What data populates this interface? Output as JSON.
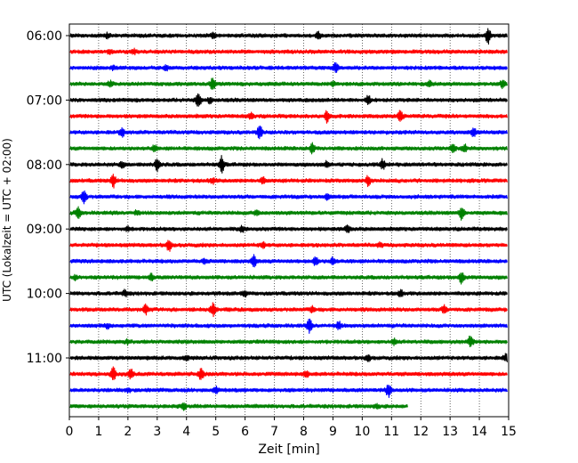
{
  "chart_data": {
    "type": "line",
    "title": "",
    "xlabel": "Zeit  [min]",
    "ylabel": "UTC (Lokalzeit = UTC + 02:00)",
    "xlim": [
      0,
      15
    ],
    "x_ticks": [
      "0",
      "1",
      "2",
      "3",
      "4",
      "5",
      "6",
      "7",
      "8",
      "9",
      "10",
      "11",
      "12",
      "13",
      "14",
      "15"
    ],
    "y_tick_labels": [
      "06:00",
      "07:00",
      "08:00",
      "09:00",
      "10:00",
      "11:00"
    ],
    "grid": "vertical dotted",
    "trace_colors": [
      "#000000",
      "#ff0000",
      "#0000ff",
      "#008000"
    ],
    "traces": [
      {
        "start": "06:00",
        "color": "#000000",
        "end_min": 15,
        "events": [
          [
            14.3,
            9
          ],
          [
            8.5,
            4
          ],
          [
            4.9,
            3
          ],
          [
            1.3,
            2
          ]
        ]
      },
      {
        "start": "06:15",
        "color": "#ff0000",
        "end_min": 15,
        "events": [
          [
            1.4,
            2
          ],
          [
            2.2,
            2
          ]
        ]
      },
      {
        "start": "06:30",
        "color": "#0000ff",
        "end_min": 15,
        "events": [
          [
            9.1,
            5
          ],
          [
            1.5,
            2
          ],
          [
            3.3,
            2
          ]
        ]
      },
      {
        "start": "06:45",
        "color": "#008000",
        "end_min": 15,
        "events": [
          [
            4.9,
            7
          ],
          [
            14.8,
            4
          ],
          [
            1.4,
            3
          ],
          [
            12.3,
            3
          ],
          [
            9.0,
            2
          ]
        ]
      },
      {
        "start": "07:00",
        "color": "#000000",
        "end_min": 15,
        "events": [
          [
            4.4,
            9
          ],
          [
            10.2,
            5
          ],
          [
            4.8,
            3
          ]
        ]
      },
      {
        "start": "07:15",
        "color": "#ff0000",
        "end_min": 15,
        "events": [
          [
            8.8,
            6
          ],
          [
            11.3,
            7
          ],
          [
            6.2,
            3
          ]
        ]
      },
      {
        "start": "07:30",
        "color": "#0000ff",
        "end_min": 15,
        "events": [
          [
            6.5,
            7
          ],
          [
            13.8,
            5
          ],
          [
            1.8,
            4
          ]
        ]
      },
      {
        "start": "07:45",
        "color": "#008000",
        "end_min": 15,
        "events": [
          [
            8.3,
            6
          ],
          [
            13.1,
            5
          ],
          [
            13.5,
            4
          ],
          [
            2.9,
            3
          ]
        ]
      },
      {
        "start": "08:00",
        "color": "#000000",
        "end_min": 15,
        "events": [
          [
            5.2,
            9
          ],
          [
            3.0,
            7
          ],
          [
            10.7,
            5
          ],
          [
            1.8,
            3
          ],
          [
            8.8,
            3
          ]
        ]
      },
      {
        "start": "08:15",
        "color": "#ff0000",
        "end_min": 15,
        "events": [
          [
            1.5,
            7
          ],
          [
            10.2,
            5
          ],
          [
            4.9,
            3
          ],
          [
            6.6,
            3
          ]
        ]
      },
      {
        "start": "08:30",
        "color": "#0000ff",
        "end_min": 15,
        "events": [
          [
            0.5,
            8
          ],
          [
            8.8,
            3
          ]
        ]
      },
      {
        "start": "08:45",
        "color": "#008000",
        "end_min": 15,
        "events": [
          [
            0.3,
            6
          ],
          [
            13.4,
            7
          ],
          [
            6.4,
            3
          ],
          [
            2.3,
            2
          ]
        ]
      },
      {
        "start": "09:00",
        "color": "#000000",
        "end_min": 15,
        "events": [
          [
            9.5,
            4
          ],
          [
            5.9,
            3
          ],
          [
            2.0,
            2
          ]
        ]
      },
      {
        "start": "09:15",
        "color": "#ff0000",
        "end_min": 15,
        "events": [
          [
            3.4,
            6
          ],
          [
            6.6,
            3
          ],
          [
            10.6,
            2
          ]
        ]
      },
      {
        "start": "09:30",
        "color": "#0000ff",
        "end_min": 15,
        "events": [
          [
            6.3,
            6
          ],
          [
            8.4,
            5
          ],
          [
            9.0,
            4
          ],
          [
            4.6,
            2
          ]
        ]
      },
      {
        "start": "09:45",
        "color": "#008000",
        "end_min": 15,
        "events": [
          [
            13.4,
            7
          ],
          [
            2.8,
            3
          ],
          [
            0.2,
            2
          ]
        ]
      },
      {
        "start": "10:00",
        "color": "#000000",
        "end_min": 15,
        "events": [
          [
            1.9,
            3
          ],
          [
            6.0,
            3
          ],
          [
            11.3,
            3
          ]
        ]
      },
      {
        "start": "10:15",
        "color": "#ff0000",
        "end_min": 15,
        "events": [
          [
            4.9,
            7
          ],
          [
            2.6,
            5
          ],
          [
            12.8,
            4
          ],
          [
            8.3,
            3
          ]
        ]
      },
      {
        "start": "10:30",
        "color": "#0000ff",
        "end_min": 15,
        "events": [
          [
            8.2,
            7
          ],
          [
            9.2,
            4
          ],
          [
            1.3,
            2
          ]
        ]
      },
      {
        "start": "10:45",
        "color": "#008000",
        "end_min": 15,
        "events": [
          [
            13.7,
            6
          ],
          [
            11.1,
            3
          ],
          [
            2.0,
            2
          ]
        ]
      },
      {
        "start": "11:00",
        "color": "#000000",
        "end_min": 15,
        "events": [
          [
            14.9,
            4
          ],
          [
            10.2,
            3
          ],
          [
            4.0,
            2
          ]
        ]
      },
      {
        "start": "11:15",
        "color": "#ff0000",
        "end_min": 15,
        "events": [
          [
            1.5,
            7
          ],
          [
            2.1,
            5
          ],
          [
            4.5,
            7
          ],
          [
            8.1,
            3
          ]
        ]
      },
      {
        "start": "11:30",
        "color": "#0000ff",
        "end_min": 15,
        "events": [
          [
            10.9,
            7
          ],
          [
            5.0,
            3
          ],
          [
            2.0,
            2
          ]
        ]
      },
      {
        "start": "11:45",
        "color": "#008000",
        "end_min": 11.6,
        "events": [
          [
            3.9,
            3
          ],
          [
            10.5,
            2
          ]
        ]
      }
    ]
  }
}
